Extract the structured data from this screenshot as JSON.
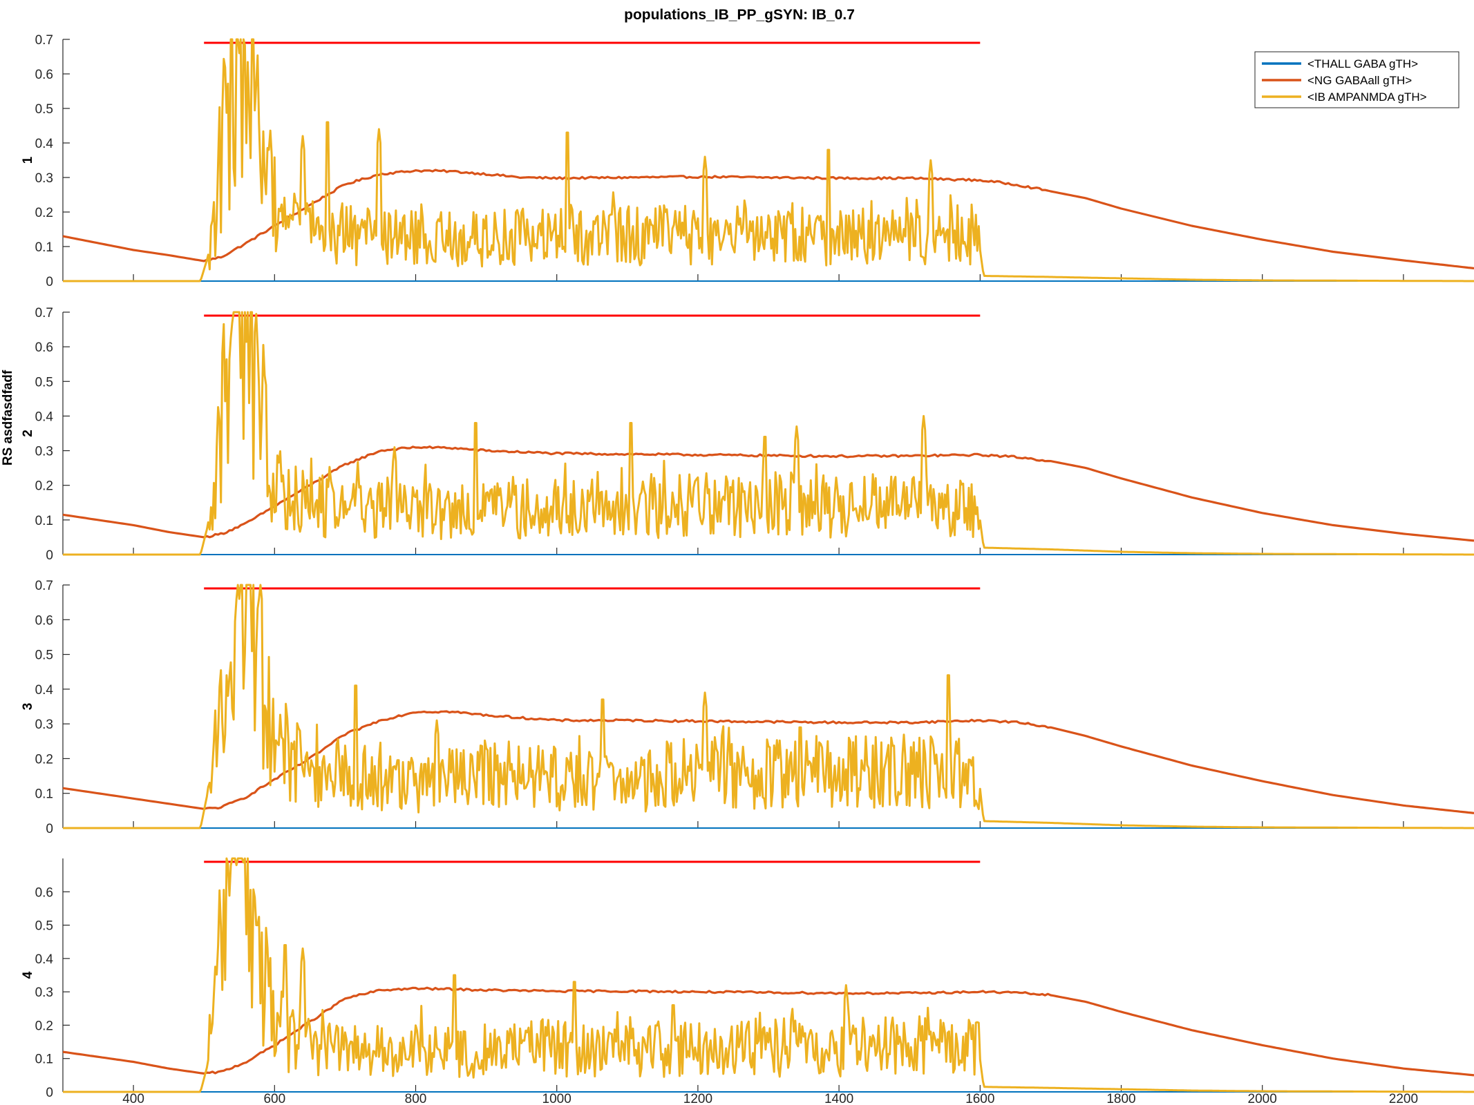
{
  "figure": {
    "title": "populations_IB_PP_gSYN: IB_0.7",
    "shared_ylabel": "RS asdfasdfadf"
  },
  "legend": {
    "items": [
      {
        "label": "<THALL GABA gTH>",
        "color": "#0072BD"
      },
      {
        "label": "<NG GABAall gTH>",
        "color": "#D95319"
      },
      {
        "label": "<IB AMPANMDA gTH>",
        "color": "#EDB120"
      }
    ]
  },
  "colors": {
    "threshold": "#FF0000",
    "axis": "#262626",
    "ng": "#D95319",
    "ib": "#EDB120",
    "thall": "#0072BD"
  },
  "chart_data": {
    "type": "line",
    "xlim": [
      300,
      2300
    ],
    "xticks": [
      400,
      600,
      800,
      1000,
      1200,
      1400,
      1600,
      1800,
      2000,
      2200
    ],
    "stim_window": [
      500,
      1600
    ],
    "threshold_value": 0.69,
    "series_names": [
      "<THALL GABA gTH>",
      "<NG GABAall gTH>",
      "<IB AMPANMDA gTH>"
    ],
    "panels": [
      {
        "label": "1",
        "ylim": [
          0,
          0.7
        ],
        "yticks": [
          0,
          0.1,
          0.2,
          0.3,
          0.4,
          0.5,
          0.6,
          0.7
        ],
        "ng": [
          [
            300,
            0.13
          ],
          [
            350,
            0.11
          ],
          [
            400,
            0.09
          ],
          [
            450,
            0.075
          ],
          [
            500,
            0.058
          ],
          [
            525,
            0.07
          ],
          [
            560,
            0.11
          ],
          [
            600,
            0.16
          ],
          [
            650,
            0.22
          ],
          [
            700,
            0.28
          ],
          [
            750,
            0.31
          ],
          [
            800,
            0.32
          ],
          [
            850,
            0.318
          ],
          [
            900,
            0.31
          ],
          [
            950,
            0.3
          ],
          [
            1000,
            0.298
          ],
          [
            1100,
            0.3
          ],
          [
            1200,
            0.302
          ],
          [
            1300,
            0.3
          ],
          [
            1400,
            0.298
          ],
          [
            1500,
            0.298
          ],
          [
            1600,
            0.292
          ],
          [
            1650,
            0.28
          ],
          [
            1700,
            0.26
          ],
          [
            1750,
            0.24
          ],
          [
            1800,
            0.21
          ],
          [
            1900,
            0.16
          ],
          [
            2000,
            0.12
          ],
          [
            2100,
            0.085
          ],
          [
            2200,
            0.06
          ],
          [
            2300,
            0.037
          ]
        ],
        "ib_envelope": [
          [
            300,
            0
          ],
          [
            495,
            0
          ],
          [
            510,
            0.1
          ],
          [
            525,
            0.35
          ],
          [
            540,
            0.6
          ],
          [
            555,
            0.65
          ],
          [
            570,
            0.5
          ],
          [
            585,
            0.33
          ],
          [
            600,
            0.22
          ],
          [
            620,
            0.18
          ],
          [
            650,
            0.14
          ],
          [
            700,
            0.13
          ],
          [
            800,
            0.12
          ],
          [
            900,
            0.12
          ],
          [
            1000,
            0.13
          ],
          [
            1100,
            0.13
          ],
          [
            1200,
            0.13
          ],
          [
            1300,
            0.13
          ],
          [
            1400,
            0.13
          ],
          [
            1500,
            0.12
          ],
          [
            1598,
            0.12
          ],
          [
            1605,
            0.015
          ],
          [
            1700,
            0.012
          ],
          [
            1800,
            0.008
          ],
          [
            1900,
            0.004
          ],
          [
            2000,
            0.002
          ],
          [
            2300,
            0
          ]
        ],
        "ib_peaks": [
          [
            548,
            0.7
          ],
          [
            640,
            0.42
          ],
          [
            675,
            0.48
          ],
          [
            748,
            0.44
          ],
          [
            1015,
            0.45
          ],
          [
            1210,
            0.36
          ],
          [
            1385,
            0.4
          ],
          [
            1530,
            0.35
          ]
        ]
      },
      {
        "label": "2",
        "ylim": [
          0,
          0.7
        ],
        "yticks": [
          0,
          0.1,
          0.2,
          0.3,
          0.4,
          0.5,
          0.6,
          0.7
        ],
        "ng": [
          [
            300,
            0.115
          ],
          [
            350,
            0.1
          ],
          [
            400,
            0.085
          ],
          [
            450,
            0.065
          ],
          [
            500,
            0.05
          ],
          [
            525,
            0.06
          ],
          [
            560,
            0.09
          ],
          [
            600,
            0.14
          ],
          [
            650,
            0.2
          ],
          [
            700,
            0.26
          ],
          [
            750,
            0.3
          ],
          [
            800,
            0.31
          ],
          [
            850,
            0.308
          ],
          [
            900,
            0.3
          ],
          [
            1000,
            0.292
          ],
          [
            1100,
            0.29
          ],
          [
            1200,
            0.288
          ],
          [
            1300,
            0.286
          ],
          [
            1400,
            0.284
          ],
          [
            1500,
            0.285
          ],
          [
            1600,
            0.288
          ],
          [
            1650,
            0.282
          ],
          [
            1700,
            0.27
          ],
          [
            1750,
            0.25
          ],
          [
            1800,
            0.22
          ],
          [
            1900,
            0.165
          ],
          [
            2000,
            0.12
          ],
          [
            2100,
            0.085
          ],
          [
            2200,
            0.06
          ],
          [
            2300,
            0.04
          ]
        ],
        "ib_envelope": [
          [
            300,
            0
          ],
          [
            495,
            0
          ],
          [
            510,
            0.12
          ],
          [
            525,
            0.4
          ],
          [
            540,
            0.62
          ],
          [
            555,
            0.66
          ],
          [
            570,
            0.55
          ],
          [
            585,
            0.35
          ],
          [
            600,
            0.22
          ],
          [
            620,
            0.17
          ],
          [
            650,
            0.14
          ],
          [
            700,
            0.13
          ],
          [
            800,
            0.12
          ],
          [
            900,
            0.12
          ],
          [
            1000,
            0.13
          ],
          [
            1100,
            0.13
          ],
          [
            1200,
            0.14
          ],
          [
            1300,
            0.14
          ],
          [
            1400,
            0.14
          ],
          [
            1500,
            0.14
          ],
          [
            1598,
            0.13
          ],
          [
            1605,
            0.02
          ],
          [
            1700,
            0.015
          ],
          [
            1800,
            0.008
          ],
          [
            1900,
            0.004
          ],
          [
            2000,
            0.002
          ],
          [
            2300,
            0
          ]
        ],
        "ib_peaks": [
          [
            545,
            0.7
          ],
          [
            575,
            0.62
          ],
          [
            770,
            0.31
          ],
          [
            885,
            0.4
          ],
          [
            1105,
            0.4
          ],
          [
            1295,
            0.36
          ],
          [
            1340,
            0.37
          ],
          [
            1520,
            0.4
          ]
        ]
      },
      {
        "label": "3",
        "ylim": [
          0,
          0.7
        ],
        "yticks": [
          0,
          0.1,
          0.2,
          0.3,
          0.4,
          0.5,
          0.6,
          0.7
        ],
        "ng": [
          [
            300,
            0.115
          ],
          [
            350,
            0.1
          ],
          [
            400,
            0.085
          ],
          [
            450,
            0.07
          ],
          [
            500,
            0.055
          ],
          [
            525,
            0.06
          ],
          [
            560,
            0.09
          ],
          [
            600,
            0.14
          ],
          [
            650,
            0.2
          ],
          [
            700,
            0.27
          ],
          [
            750,
            0.31
          ],
          [
            800,
            0.335
          ],
          [
            850,
            0.335
          ],
          [
            900,
            0.325
          ],
          [
            1000,
            0.31
          ],
          [
            1100,
            0.31
          ],
          [
            1200,
            0.308
          ],
          [
            1300,
            0.306
          ],
          [
            1400,
            0.304
          ],
          [
            1500,
            0.304
          ],
          [
            1600,
            0.31
          ],
          [
            1650,
            0.305
          ],
          [
            1700,
            0.29
          ],
          [
            1750,
            0.265
          ],
          [
            1800,
            0.235
          ],
          [
            1900,
            0.18
          ],
          [
            2000,
            0.135
          ],
          [
            2100,
            0.095
          ],
          [
            2200,
            0.065
          ],
          [
            2300,
            0.043
          ]
        ],
        "ib_envelope": [
          [
            300,
            0
          ],
          [
            495,
            0
          ],
          [
            510,
            0.15
          ],
          [
            525,
            0.45
          ],
          [
            540,
            0.63
          ],
          [
            555,
            0.66
          ],
          [
            570,
            0.6
          ],
          [
            585,
            0.45
          ],
          [
            600,
            0.28
          ],
          [
            620,
            0.2
          ],
          [
            650,
            0.17
          ],
          [
            700,
            0.15
          ],
          [
            800,
            0.12
          ],
          [
            900,
            0.15
          ],
          [
            1000,
            0.14
          ],
          [
            1100,
            0.12
          ],
          [
            1200,
            0.16
          ],
          [
            1300,
            0.15
          ],
          [
            1400,
            0.16
          ],
          [
            1500,
            0.16
          ],
          [
            1598,
            0.15
          ],
          [
            1605,
            0.02
          ],
          [
            1700,
            0.015
          ],
          [
            1800,
            0.008
          ],
          [
            1900,
            0.004
          ],
          [
            2000,
            0.002
          ],
          [
            2300,
            0
          ]
        ],
        "ib_peaks": [
          [
            548,
            0.7
          ],
          [
            580,
            0.7
          ],
          [
            715,
            0.43
          ],
          [
            830,
            0.31
          ],
          [
            1065,
            0.39
          ],
          [
            1210,
            0.39
          ],
          [
            1345,
            0.31
          ],
          [
            1555,
            0.46
          ]
        ]
      },
      {
        "label": "4",
        "ylim": [
          0,
          0.7
        ],
        "yticks": [
          0,
          0.1,
          0.2,
          0.3,
          0.4,
          0.5,
          0.6
        ],
        "ng": [
          [
            300,
            0.12
          ],
          [
            350,
            0.105
          ],
          [
            400,
            0.09
          ],
          [
            450,
            0.07
          ],
          [
            500,
            0.055
          ],
          [
            525,
            0.06
          ],
          [
            560,
            0.09
          ],
          [
            600,
            0.14
          ],
          [
            650,
            0.21
          ],
          [
            700,
            0.28
          ],
          [
            750,
            0.305
          ],
          [
            800,
            0.31
          ],
          [
            850,
            0.308
          ],
          [
            900,
            0.305
          ],
          [
            1000,
            0.302
          ],
          [
            1100,
            0.302
          ],
          [
            1200,
            0.3
          ],
          [
            1300,
            0.298
          ],
          [
            1400,
            0.296
          ],
          [
            1500,
            0.296
          ],
          [
            1600,
            0.3
          ],
          [
            1650,
            0.298
          ],
          [
            1700,
            0.29
          ],
          [
            1750,
            0.27
          ],
          [
            1800,
            0.24
          ],
          [
            1900,
            0.185
          ],
          [
            2000,
            0.14
          ],
          [
            2100,
            0.1
          ],
          [
            2200,
            0.07
          ],
          [
            2300,
            0.05
          ]
        ],
        "ib_envelope": [
          [
            300,
            0
          ],
          [
            495,
            0
          ],
          [
            510,
            0.12
          ],
          [
            525,
            0.42
          ],
          [
            540,
            0.62
          ],
          [
            555,
            0.64
          ],
          [
            570,
            0.52
          ],
          [
            585,
            0.35
          ],
          [
            600,
            0.22
          ],
          [
            620,
            0.16
          ],
          [
            650,
            0.14
          ],
          [
            700,
            0.12
          ],
          [
            800,
            0.12
          ],
          [
            900,
            0.12
          ],
          [
            1000,
            0.13
          ],
          [
            1100,
            0.12
          ],
          [
            1200,
            0.13
          ],
          [
            1300,
            0.13
          ],
          [
            1400,
            0.13
          ],
          [
            1500,
            0.14
          ],
          [
            1598,
            0.13
          ],
          [
            1605,
            0.015
          ],
          [
            1700,
            0.012
          ],
          [
            1800,
            0.008
          ],
          [
            1900,
            0.004
          ],
          [
            2000,
            0.002
          ],
          [
            2300,
            0
          ]
        ],
        "ib_peaks": [
          [
            545,
            0.7
          ],
          [
            575,
            0.52
          ],
          [
            615,
            0.46
          ],
          [
            640,
            0.43
          ],
          [
            855,
            0.37
          ],
          [
            1025,
            0.35
          ],
          [
            1165,
            0.28
          ],
          [
            1410,
            0.32
          ]
        ]
      }
    ]
  }
}
